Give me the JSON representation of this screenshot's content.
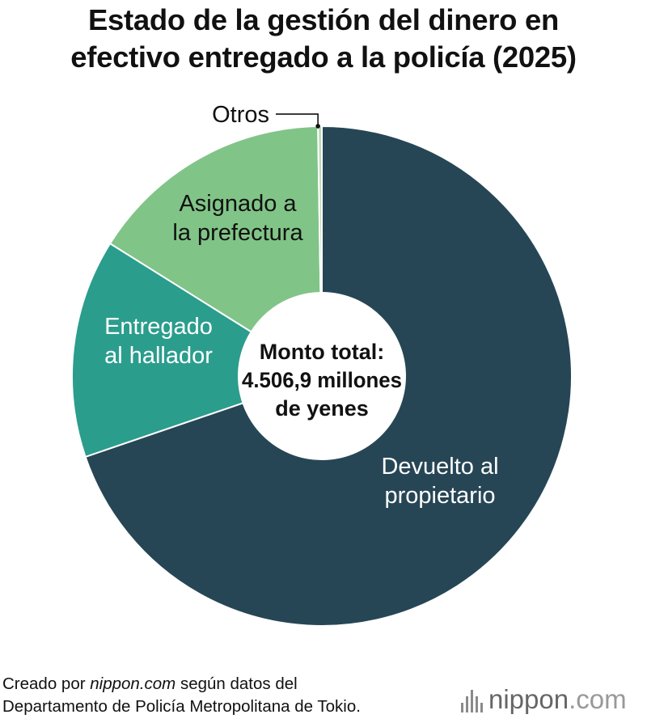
{
  "chart_data": {
    "type": "pie",
    "title_lines": [
      "Estado de la gestión del dinero en",
      "efectivo entregado a la policía (2025)"
    ],
    "center_label_lines": [
      "Monto total:",
      "4.506,9 millones",
      "de yenes"
    ],
    "slices": [
      {
        "label_lines": [
          "Devuelto al",
          "propietario"
        ],
        "share": 0.6976,
        "color": "#274655",
        "label_color": "#ffffff"
      },
      {
        "label_lines": [
          "Entregado",
          "al hallador"
        ],
        "share": 0.1414,
        "color": "#2b9d8d",
        "label_color": "#ffffff"
      },
      {
        "label_lines": [
          "Asignado a",
          "la prefectura"
        ],
        "share": 0.1585,
        "color": "#81c487",
        "label_color": "#111111"
      },
      {
        "label_lines": [
          "Otros"
        ],
        "share": 0.0025,
        "color": "#b8dcb0",
        "label_color": "#111111"
      }
    ]
  },
  "footer": {
    "line1_prefix": "Creado por ",
    "line1_site": "nippon.com",
    "line1_suffix": " según datos del",
    "line2": "Departamento de Policía Metropolitana de Tokio."
  },
  "logo": {
    "text": "nippon",
    "suffix": ".com"
  }
}
